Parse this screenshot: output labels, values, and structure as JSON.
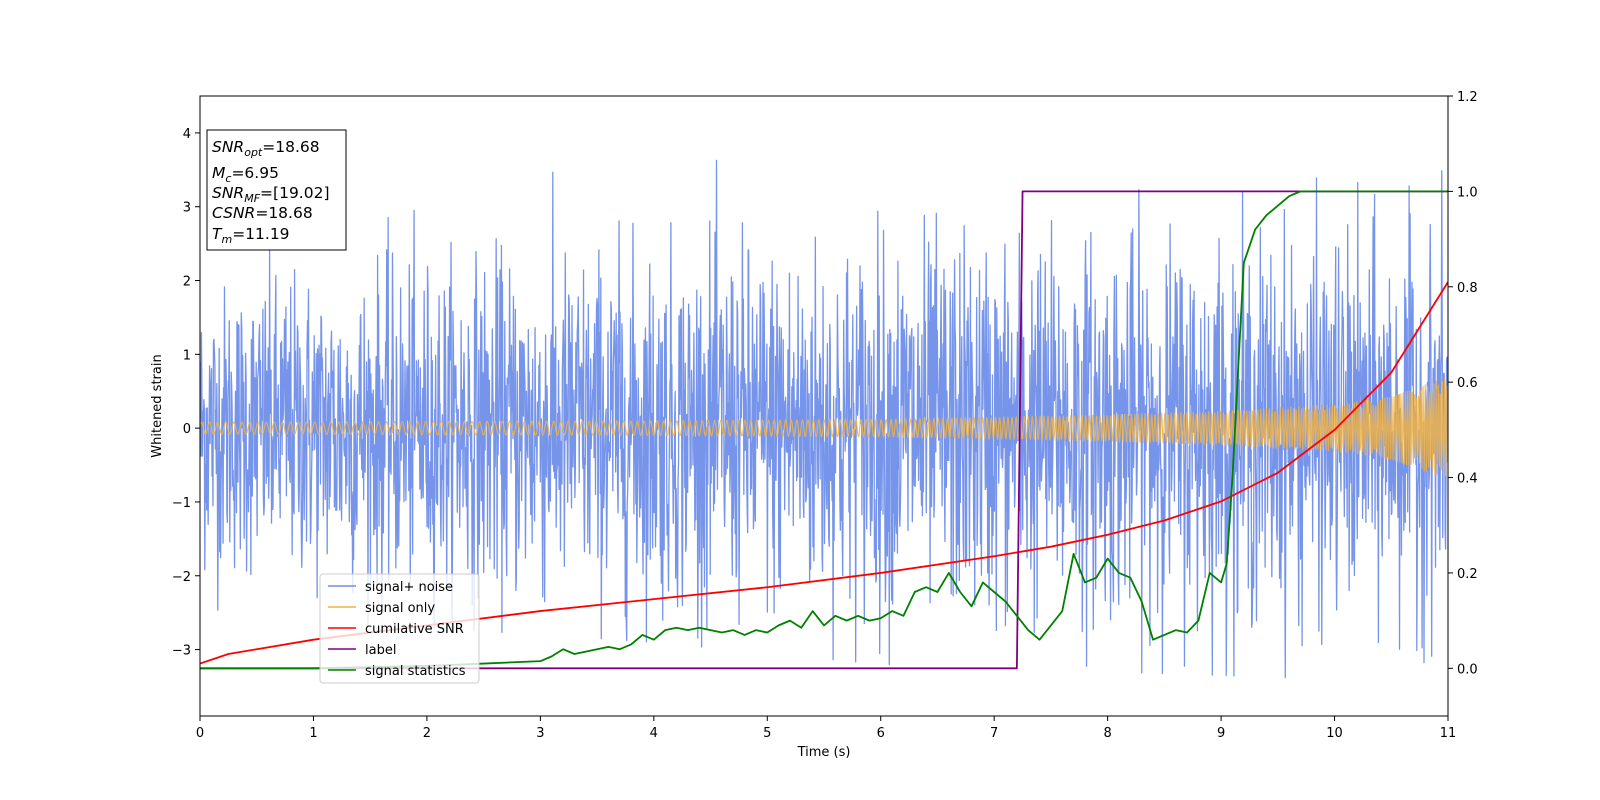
{
  "chart_data": {
    "type": "line",
    "title": "",
    "xlabel": "Time (s)",
    "ylabel": "Whitened strain",
    "xlim": [
      0,
      11
    ],
    "ylim": [
      -3.9,
      4.5
    ],
    "y2lim": [
      -0.1,
      1.2
    ],
    "xticks": [
      "0",
      "1",
      "2",
      "3",
      "4",
      "5",
      "6",
      "7",
      "8",
      "9",
      "10",
      "11"
    ],
    "yticks": [
      "−3",
      "−2",
      "−1",
      "0",
      "1",
      "2",
      "3",
      "4"
    ],
    "y2ticks": [
      "0.0",
      "0.2",
      "0.4",
      "0.6",
      "0.8",
      "1.0",
      "1.2"
    ],
    "grid": false,
    "legend_position": "lower-left",
    "info_box": {
      "snr_opt": {
        "var": "SNR",
        "sub": "opt",
        "value": "=18.68"
      },
      "mc": {
        "var": "M",
        "sub": "c",
        "value": "=6.95"
      },
      "snr_mf": {
        "var": "SNR",
        "sub": "MF",
        "value": "=[19.02]"
      },
      "csnr": {
        "var": "CSNR",
        "value": "=18.68"
      },
      "tm": {
        "var": "T",
        "sub": "m",
        "value": "=11.19"
      }
    },
    "series": [
      {
        "name": "signal+ noise",
        "axis": "left",
        "color": "#6f8ee8",
        "description": "noisy whitened strain, roughly within -3.4 to 3.9",
        "envelope": {
          "x": [
            0,
            2,
            4,
            6,
            8,
            10,
            11
          ],
          "low": [
            -2.6,
            -2.7,
            -2.9,
            -3.2,
            -3.3,
            -3.4,
            -3.2
          ],
          "high": [
            2.6,
            3.3,
            3.6,
            3.7,
            3.6,
            3.5,
            3.5
          ]
        }
      },
      {
        "name": "signal only",
        "axis": "left",
        "color": "#f0b347",
        "description": "chirp whose amplitude grows with time",
        "amplitude": {
          "x": [
            0,
            2,
            4,
            6,
            7,
            8,
            9,
            10,
            10.5,
            11
          ],
          "values": [
            0.08,
            0.09,
            0.1,
            0.12,
            0.15,
            0.18,
            0.23,
            0.32,
            0.42,
            0.7
          ]
        }
      },
      {
        "name": "cumilative SNR",
        "axis": "right",
        "color": "#ff0000",
        "x": [
          0,
          0.25,
          0.5,
          1,
          2,
          3,
          4,
          5,
          6,
          7,
          7.5,
          8,
          8.5,
          9,
          9.5,
          10,
          10.5,
          11
        ],
        "y": [
          0.01,
          0.03,
          0.04,
          0.06,
          0.09,
          0.12,
          0.145,
          0.17,
          0.2,
          0.235,
          0.255,
          0.28,
          0.31,
          0.35,
          0.41,
          0.5,
          0.62,
          0.81
        ]
      },
      {
        "name": "label",
        "axis": "right",
        "color": "#800080",
        "x": [
          0,
          7.2,
          7.25,
          11
        ],
        "y": [
          0,
          0,
          1,
          1
        ]
      },
      {
        "name": "signal statistics",
        "axis": "right",
        "color": "#008000",
        "x": [
          0,
          1,
          2,
          2.5,
          3,
          3.1,
          3.2,
          3.3,
          3.4,
          3.5,
          3.6,
          3.7,
          3.8,
          3.9,
          4.0,
          4.1,
          4.2,
          4.3,
          4.4,
          4.5,
          4.6,
          4.7,
          4.8,
          4.9,
          5.0,
          5.1,
          5.2,
          5.3,
          5.4,
          5.5,
          5.6,
          5.7,
          5.8,
          5.9,
          6.0,
          6.1,
          6.2,
          6.3,
          6.4,
          6.5,
          6.6,
          6.7,
          6.8,
          6.9,
          7.0,
          7.1,
          7.2,
          7.3,
          7.4,
          7.5,
          7.6,
          7.7,
          7.8,
          7.9,
          8.0,
          8.1,
          8.2,
          8.3,
          8.4,
          8.5,
          8.6,
          8.7,
          8.8,
          8.9,
          9.0,
          9.05,
          9.1,
          9.2,
          9.3,
          9.4,
          9.5,
          9.6,
          9.7,
          9.8,
          10.0,
          10.5,
          11
        ],
        "y": [
          0,
          0,
          0.005,
          0.01,
          0.015,
          0.025,
          0.04,
          0.03,
          0.035,
          0.04,
          0.045,
          0.04,
          0.05,
          0.07,
          0.06,
          0.08,
          0.085,
          0.08,
          0.085,
          0.08,
          0.075,
          0.08,
          0.07,
          0.08,
          0.075,
          0.09,
          0.1,
          0.085,
          0.12,
          0.09,
          0.11,
          0.1,
          0.11,
          0.1,
          0.105,
          0.12,
          0.11,
          0.16,
          0.17,
          0.16,
          0.2,
          0.16,
          0.13,
          0.18,
          0.16,
          0.14,
          0.11,
          0.08,
          0.06,
          0.09,
          0.12,
          0.24,
          0.18,
          0.19,
          0.23,
          0.2,
          0.19,
          0.14,
          0.06,
          0.07,
          0.08,
          0.075,
          0.1,
          0.2,
          0.18,
          0.22,
          0.4,
          0.85,
          0.92,
          0.95,
          0.97,
          0.99,
          1.0,
          1.0,
          1.0,
          1.0,
          1.0
        ]
      }
    ]
  }
}
